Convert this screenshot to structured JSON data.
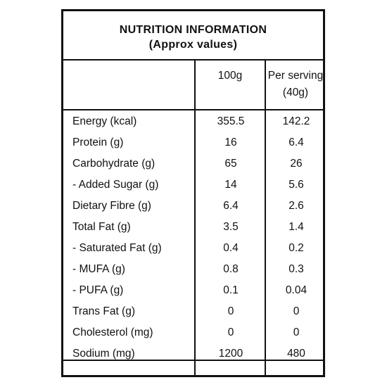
{
  "title": {
    "line1": "NUTRITION INFORMATION",
    "line2": "(Approx values)"
  },
  "columns": {
    "col1": "100g",
    "col2_line1": "Per serving",
    "col2_line2": "(40g)"
  },
  "rows": [
    {
      "label": "Energy (kcal)",
      "per100g": "355.5",
      "perServing": "142.2"
    },
    {
      "label": "Protein (g)",
      "per100g": "16",
      "perServing": "6.4"
    },
    {
      "label": "Carbohydrate (g)",
      "per100g": "65",
      "perServing": "26"
    },
    {
      "label": "- Added Sugar (g)",
      "per100g": "14",
      "perServing": "5.6"
    },
    {
      "label": "Dietary Fibre (g)",
      "per100g": "6.4",
      "perServing": "2.6"
    },
    {
      "label": "Total Fat (g)",
      "per100g": "3.5",
      "perServing": "1.4"
    },
    {
      "label": "- Saturated Fat (g)",
      "per100g": "0.4",
      "perServing": "0.2"
    },
    {
      "label": "- MUFA (g)",
      "per100g": "0.8",
      "perServing": "0.3"
    },
    {
      "label": "- PUFA (g)",
      "per100g": "0.1",
      "perServing": "0.04"
    },
    {
      "label": "Trans Fat (g)",
      "per100g": "0",
      "perServing": "0"
    },
    {
      "label": "Cholesterol (mg)",
      "per100g": "0",
      "perServing": "0"
    },
    {
      "label": "Sodium (mg)",
      "per100g": "1200",
      "perServing": "480"
    }
  ]
}
